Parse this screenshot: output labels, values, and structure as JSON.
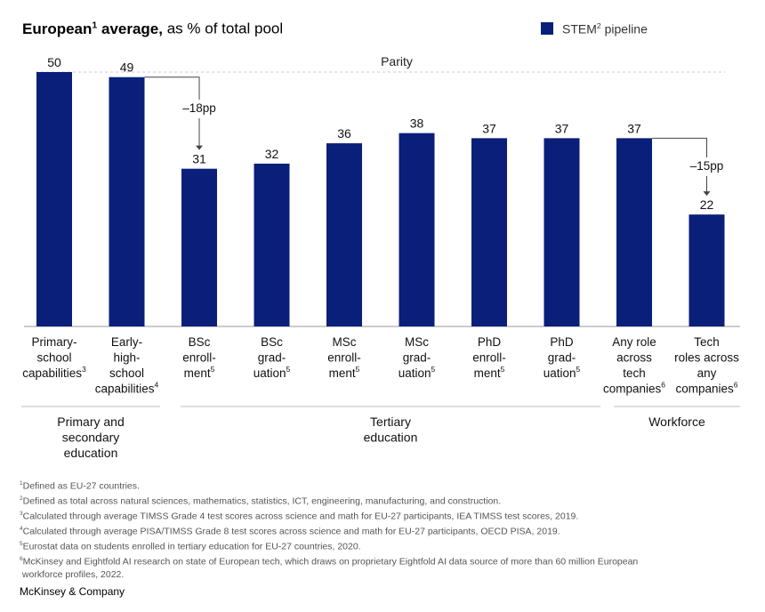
{
  "title": {
    "bold": "European",
    "sup": "1",
    "bold2": " average,",
    "rest": " as % of total pool"
  },
  "legend": {
    "label": "STEM",
    "sup": "2",
    "label2": " pipeline",
    "color": "#0a1f7a"
  },
  "chart_data": {
    "type": "bar",
    "title": "European average, as % of total pool",
    "series": [
      {
        "name": "STEM pipeline",
        "values": [
          50,
          49,
          31,
          32,
          36,
          38,
          37,
          37,
          37,
          22
        ]
      }
    ],
    "categories": [
      {
        "lines": [
          "Primary-",
          "school",
          "capabilities"
        ],
        "sup": "3"
      },
      {
        "lines": [
          "Early-",
          "high-",
          "school",
          "capabilities"
        ],
        "sup": "4"
      },
      {
        "lines": [
          "BSc",
          "enroll-",
          "ment"
        ],
        "sup": "5"
      },
      {
        "lines": [
          "BSc",
          "grad-",
          "uation"
        ],
        "sup": "5"
      },
      {
        "lines": [
          "MSc",
          "enroll-",
          "ment"
        ],
        "sup": "5"
      },
      {
        "lines": [
          "MSc",
          "grad-",
          "uation"
        ],
        "sup": "5"
      },
      {
        "lines": [
          "PhD",
          "enroll-",
          "ment"
        ],
        "sup": "5"
      },
      {
        "lines": [
          "PhD",
          "grad-",
          "uation"
        ],
        "sup": "5"
      },
      {
        "lines": [
          "Any role",
          "across",
          "tech",
          "companies"
        ],
        "sup": "6"
      },
      {
        "lines": [
          "Tech",
          "roles across",
          "any",
          "companies"
        ],
        "sup": "6"
      }
    ],
    "reference_line": {
      "label": "Parity",
      "value": 50
    },
    "ylim": [
      0,
      50
    ],
    "annotations": [
      {
        "from": 1,
        "to": 2,
        "label": "–18pp"
      },
      {
        "from": 8,
        "to": 9,
        "label": "–15pp"
      }
    ],
    "groups": [
      {
        "lines": [
          "Primary and",
          "secondary",
          "education"
        ],
        "from": 0,
        "to": 1
      },
      {
        "lines": [
          "Tertiary",
          "education"
        ],
        "from": 2,
        "to": 7
      },
      {
        "lines": [
          "Workforce"
        ],
        "from": 8,
        "to": 9
      }
    ],
    "bar_color": "#0a1f7a"
  },
  "footnotes": [
    {
      "num": "1",
      "text": "Defined as EU-27 countries."
    },
    {
      "num": "2",
      "text": "Defined as total across natural sciences, mathematics, statistics, ICT, engineering, manufacturing, and construction."
    },
    {
      "num": "3",
      "text": "Calculated through average TIMSS Grade 4 test scores across science and math for EU-27 participants, IEA TIMSS test scores, 2019."
    },
    {
      "num": "4",
      "text": "Calculated through average PISA/TIMSS Grade 8 test scores across science and math for EU-27 participants, OECD PISA, 2019."
    },
    {
      "num": "5",
      "text": "Eurostat data on students enrolled in tertiary education for EU-27 countries, 2020."
    },
    {
      "num": "6",
      "text": "McKinsey and Eightfold AI research on state of European tech, which draws on proprietary Eightfold AI data source of more than 60 million European\n workforce profiles, 2022."
    }
  ],
  "brand": "McKinsey & Company"
}
